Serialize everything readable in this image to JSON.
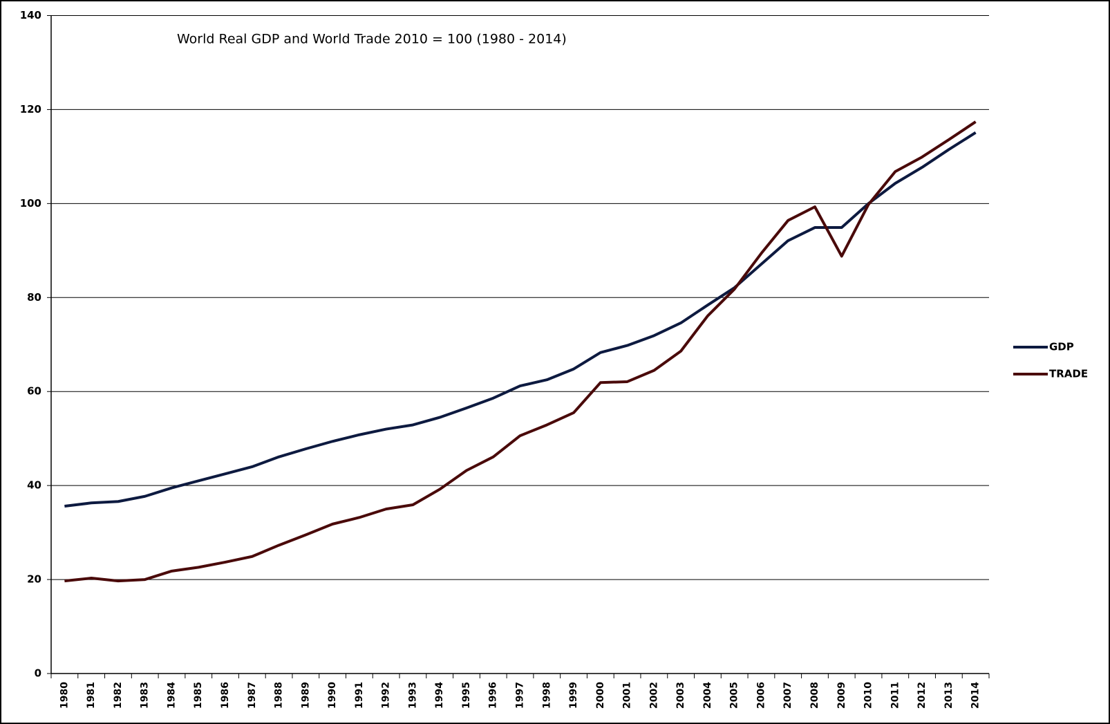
{
  "chart_data": {
    "type": "line",
    "title": "World Real GDP and World Trade  2010 = 100  (1980 -  2014)",
    "categories": [
      "1980",
      "1981",
      "1982",
      "1983",
      "1984",
      "1985",
      "1986",
      "1987",
      "1988",
      "1989",
      "1990",
      "1991",
      "1992",
      "1993",
      "1994",
      "1995",
      "1996",
      "1997",
      "1998",
      "1999",
      "2000",
      "2001",
      "2002",
      "2003",
      "2004",
      "2005",
      "2006",
      "2007",
      "2008",
      "2009",
      "2010",
      "2011",
      "2012",
      "2013",
      "2014"
    ],
    "series": [
      {
        "name": "GDP",
        "color": "#0d1a40",
        "values": [
          35.6,
          36.3,
          36.6,
          37.7,
          39.5,
          41.0,
          42.5,
          44.0,
          46.1,
          47.8,
          49.4,
          50.8,
          52.0,
          52.9,
          54.5,
          56.5,
          58.6,
          61.2,
          62.5,
          64.8,
          68.3,
          69.8,
          71.9,
          74.6,
          78.4,
          82.1,
          87.1,
          92.1,
          94.9,
          94.9,
          100,
          104.3,
          107.7,
          111.5,
          115.1
        ]
      },
      {
        "name": "TRADE",
        "color": "#4a0a0a",
        "values": [
          19.7,
          20.3,
          19.7,
          20.0,
          21.8,
          22.6,
          23.7,
          24.9,
          27.3,
          29.5,
          31.8,
          33.2,
          35.0,
          35.9,
          39.2,
          43.2,
          46.1,
          50.6,
          52.9,
          55.5,
          61.9,
          62.1,
          64.5,
          68.6,
          76.1,
          81.8,
          89.4,
          96.4,
          99.3,
          88.8,
          99.8,
          106.8,
          109.9,
          113.6,
          117.4
        ]
      }
    ],
    "ylim": [
      0,
      140
    ],
    "yticks": [
      0,
      20,
      40,
      60,
      80,
      100,
      120,
      140
    ],
    "grid": true,
    "legend": "right"
  }
}
